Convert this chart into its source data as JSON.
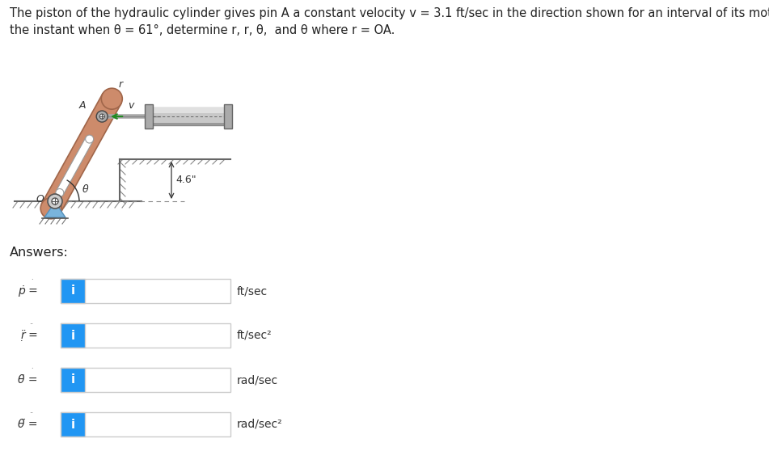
{
  "title_line1": "The piston of the hydraulic cylinder gives pin A a constant velocity v = 3.1 ft/sec in the direction shown for an interval of its motion. For",
  "title_line2": "the instant when θ = 61°, determine r, r, θ,  and θ where r = OA.",
  "background_color": "#ffffff",
  "answers_label": "Answers:",
  "row_labels": [
    "ṗ =",
    "ṛ̈ =",
    "θ̇ =",
    "θ̈ ="
  ],
  "row_units": [
    "ft/sec",
    "ft/sec²",
    "rad/sec",
    "rad/sec²"
  ],
  "box_bg": "#ffffff",
  "icon_bg": "#2196F3",
  "icon_text": "i",
  "diagram_label_r": "r",
  "diagram_label_v": "v",
  "diagram_label_A": "A",
  "diagram_label_O": "O",
  "diagram_label_theta": "θ",
  "diagram_label_dist": "4.6\"",
  "rod_color": "#CD8B6B",
  "rod_edge_color": "#A0664A",
  "ground_color": "#888888",
  "cylinder_color": "#BBBBBB",
  "cylinder_edge": "#888888"
}
